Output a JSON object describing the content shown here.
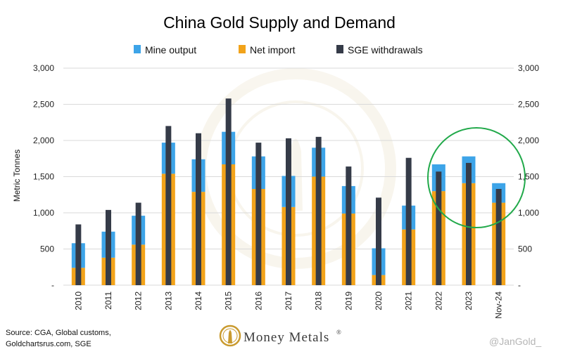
{
  "chart_data": {
    "type": "bar",
    "title": "China Gold Supply and Demand",
    "ylabel": "Metric Tonnes",
    "xlabel": "",
    "ylim": [
      0,
      3000
    ],
    "yticks": [
      "-",
      "500",
      "1,000",
      "1,500",
      "2,000",
      "2,500",
      "3,000"
    ],
    "categories": [
      "2010",
      "2011",
      "2012",
      "2013",
      "2014",
      "2015",
      "2016",
      "2017",
      "2018",
      "2019",
      "2020",
      "2021",
      "2022",
      "2023",
      "Nov-24"
    ],
    "series": [
      {
        "name": "Mine output",
        "stacked_on": "Net import",
        "values": [
          340,
          360,
          400,
          430,
          450,
          450,
          450,
          430,
          400,
          380,
          370,
          330,
          370,
          370,
          270
        ]
      },
      {
        "name": "Net import",
        "values": [
          240,
          380,
          560,
          1540,
          1290,
          1670,
          1330,
          1080,
          1500,
          990,
          140,
          770,
          1300,
          1410,
          1140
        ]
      },
      {
        "name": "SGE withdrawals",
        "values": [
          840,
          1040,
          1140,
          2200,
          2100,
          2580,
          1970,
          2030,
          2050,
          1640,
          1210,
          1760,
          1570,
          1690,
          1330
        ]
      }
    ],
    "colors": {
      "mine": "#3da4e8",
      "import": "#f2a31a",
      "sge": "#353b48",
      "highlight": "#21a94a"
    },
    "grid": true,
    "legend": "top",
    "annotation": "green circle highlighting 2022-2023"
  },
  "legend": {
    "items": [
      {
        "label": "Mine output",
        "color": "#3da4e8"
      },
      {
        "label": "Net import",
        "color": "#f2a31a"
      },
      {
        "label": "SGE withdrawals",
        "color": "#353b48"
      }
    ]
  },
  "footer": {
    "source_line1": "Source: CGA, Global customs,",
    "source_line2": "Goldchartsrus.com, SGE",
    "brand": "Money Metals",
    "brand_tm": "®",
    "handle": "@JanGold_"
  }
}
